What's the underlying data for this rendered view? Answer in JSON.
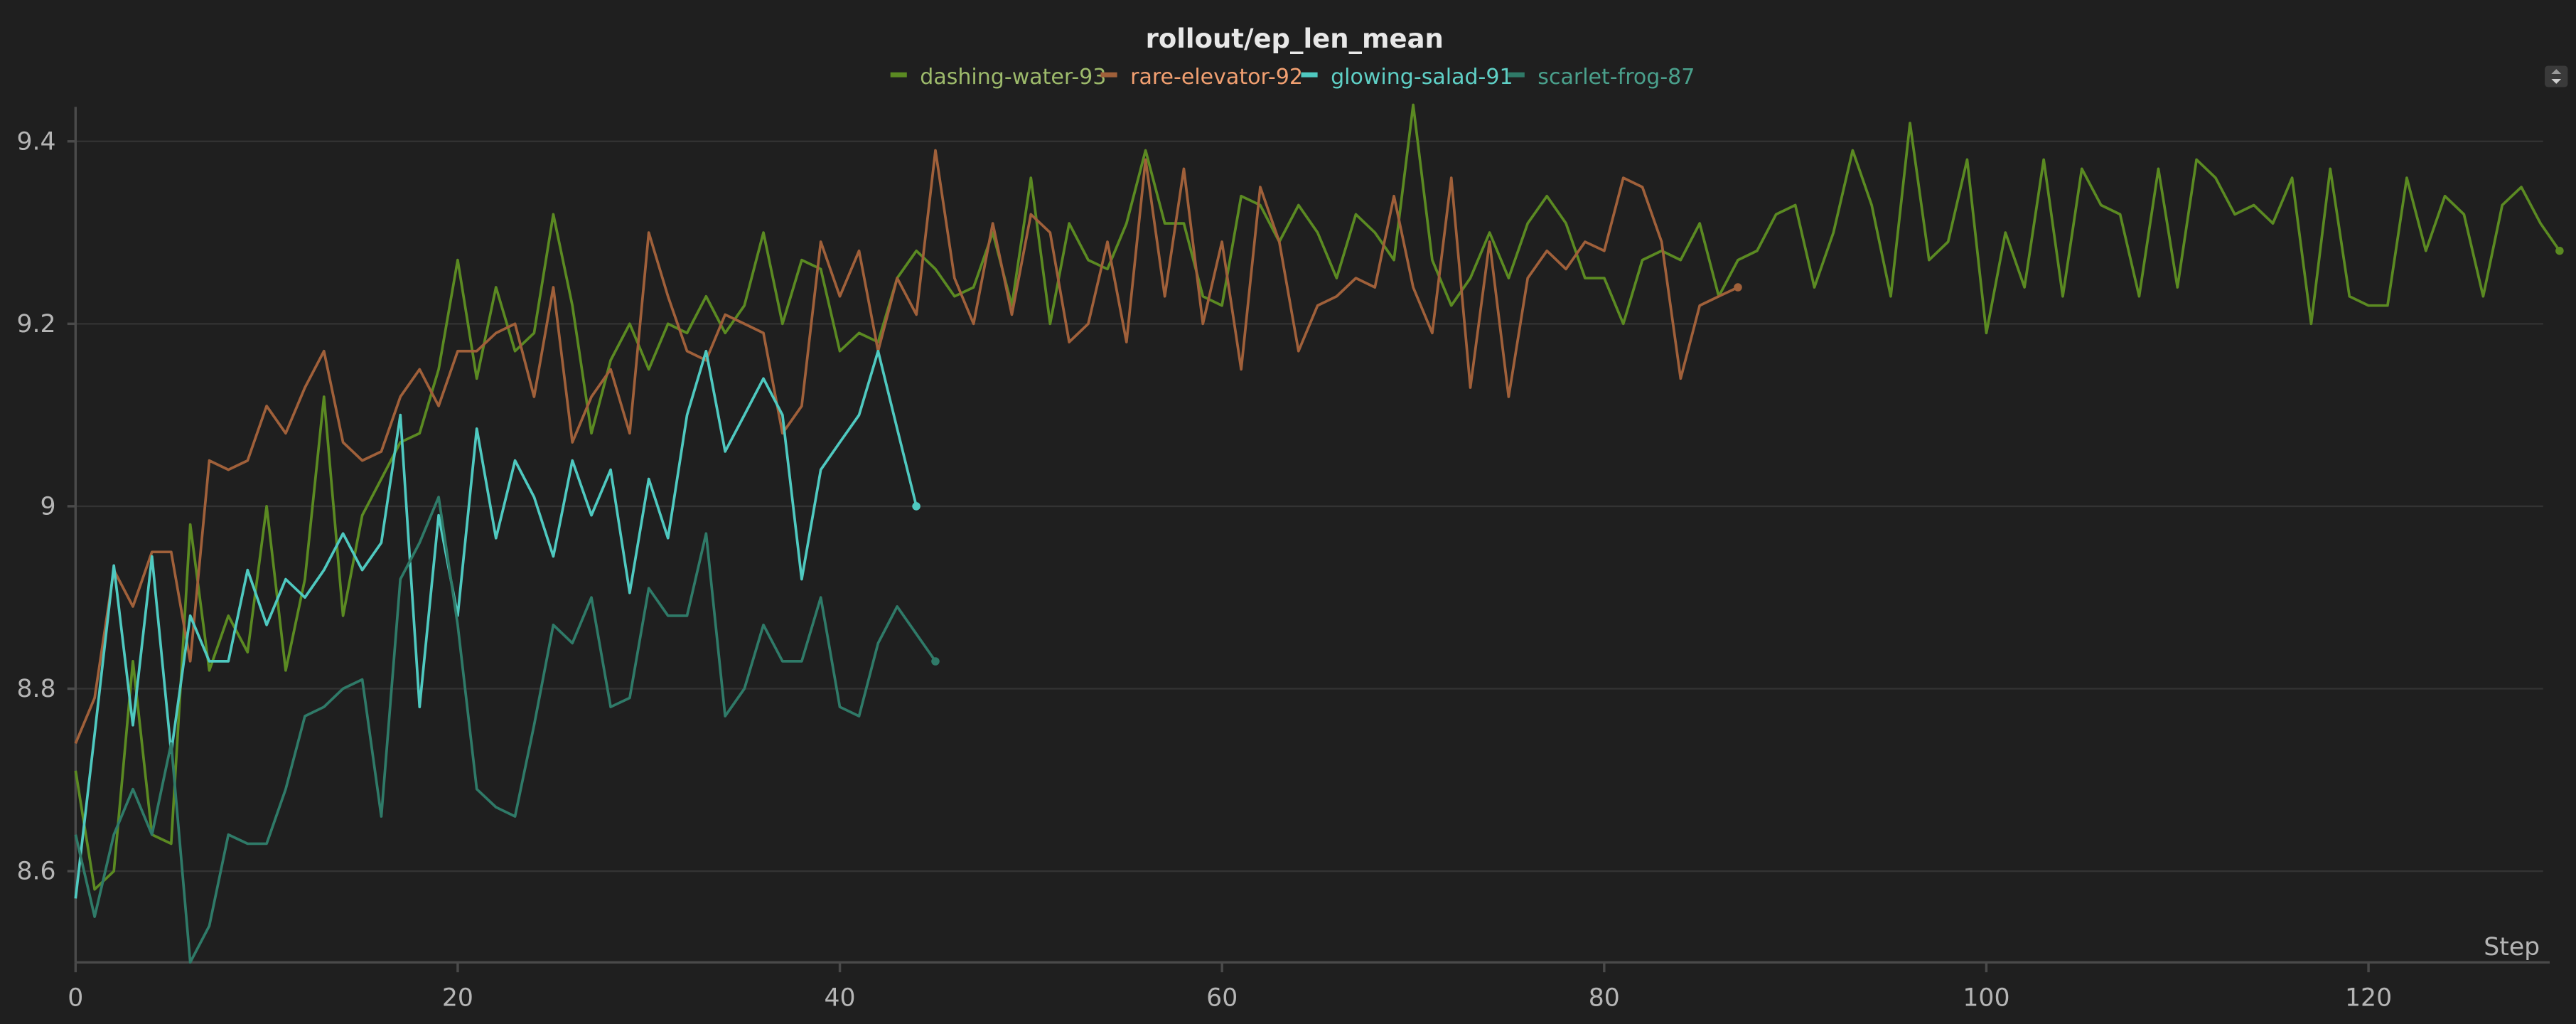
{
  "chart_data": {
    "type": "line",
    "title": "rollout/ep_len_mean",
    "xlabel": "Step",
    "ylabel": "",
    "xlim": [
      0,
      130
    ],
    "ylim": [
      8.5,
      9.45
    ],
    "x_ticks": [
      0,
      20,
      40,
      60,
      80,
      100,
      120
    ],
    "y_ticks": [
      8.6,
      8.8,
      9,
      9.2,
      9.4
    ],
    "y_tick_labels": [
      "8.6",
      "8.8",
      "9",
      "9.2",
      "9.4"
    ],
    "grid": true,
    "legend_position": "top-center",
    "series": [
      {
        "name": "dashing-water-93",
        "color": "#5b8a22",
        "label_color": "#9dba6b",
        "values": [
          8.71,
          8.58,
          8.6,
          8.83,
          8.64,
          8.63,
          8.98,
          8.82,
          8.88,
          8.84,
          9.0,
          8.82,
          8.92,
          9.12,
          8.88,
          8.99,
          9.03,
          9.07,
          9.08,
          9.15,
          9.27,
          9.14,
          9.24,
          9.17,
          9.19,
          9.32,
          9.22,
          9.08,
          9.16,
          9.2,
          9.15,
          9.2,
          9.19,
          9.23,
          9.19,
          9.22,
          9.3,
          9.2,
          9.27,
          9.26,
          9.17,
          9.19,
          9.18,
          9.25,
          9.28,
          9.26,
          9.23,
          9.24,
          9.3,
          9.22,
          9.36,
          9.2,
          9.31,
          9.27,
          9.26,
          9.31,
          9.39,
          9.31,
          9.31,
          9.23,
          9.22,
          9.34,
          9.33,
          9.29,
          9.33,
          9.3,
          9.25,
          9.32,
          9.3,
          9.27,
          9.44,
          9.27,
          9.22,
          9.25,
          9.3,
          9.25,
          9.31,
          9.34,
          9.31,
          9.25,
          9.25,
          9.2,
          9.27,
          9.28,
          9.27,
          9.31,
          9.23,
          9.27,
          9.28,
          9.32,
          9.33,
          9.24,
          9.3,
          9.39,
          9.33,
          9.23,
          9.42,
          9.27,
          9.29,
          9.38,
          9.19,
          9.3,
          9.24,
          9.38,
          9.23,
          9.37,
          9.33,
          9.32,
          9.23,
          9.37,
          9.24,
          9.38,
          9.36,
          9.32,
          9.33,
          9.31,
          9.36,
          9.2,
          9.37,
          9.23,
          9.22,
          9.22,
          9.36,
          9.28,
          9.34,
          9.32,
          9.23,
          9.33,
          9.35,
          9.31,
          9.28
        ]
      },
      {
        "name": "rare-elevator-92",
        "color": "#a0603a",
        "label_color": "#f2a071",
        "values": [
          8.74,
          8.79,
          8.93,
          8.89,
          8.95,
          8.95,
          8.83,
          9.05,
          9.04,
          9.05,
          9.11,
          9.08,
          9.13,
          9.17,
          9.07,
          9.05,
          9.06,
          9.12,
          9.15,
          9.11,
          9.17,
          9.17,
          9.19,
          9.2,
          9.12,
          9.24,
          9.07,
          9.12,
          9.15,
          9.08,
          9.3,
          9.23,
          9.17,
          9.16,
          9.21,
          9.2,
          9.19,
          9.08,
          9.11,
          9.29,
          9.23,
          9.28,
          9.17,
          9.25,
          9.21,
          9.39,
          9.25,
          9.2,
          9.31,
          9.21,
          9.32,
          9.3,
          9.18,
          9.2,
          9.29,
          9.18,
          9.38,
          9.23,
          9.37,
          9.2,
          9.29,
          9.15,
          9.35,
          9.29,
          9.17,
          9.22,
          9.23,
          9.25,
          9.24,
          9.34,
          9.24,
          9.19,
          9.36,
          9.13,
          9.29,
          9.12,
          9.25,
          9.28,
          9.26,
          9.29,
          9.28,
          9.36,
          9.35,
          9.29,
          9.14,
          9.22,
          9.23,
          9.24
        ]
      },
      {
        "name": "glowing-salad-91",
        "color": "#4fc9c0",
        "label_color": "#5fd0c6",
        "values": [
          8.57,
          8.75,
          8.935,
          8.76,
          8.945,
          8.73,
          8.88,
          8.83,
          8.83,
          8.93,
          8.87,
          8.92,
          8.9,
          8.93,
          8.97,
          8.93,
          8.96,
          9.1,
          8.78,
          8.99,
          8.88,
          9.085,
          8.965,
          9.05,
          9.01,
          8.945,
          9.05,
          8.99,
          9.04,
          8.905,
          9.03,
          8.965,
          9.1,
          9.17,
          9.06,
          9.1,
          9.14,
          9.1,
          8.92,
          9.04,
          9.07,
          9.1,
          9.17,
          9.085,
          9.0
        ]
      },
      {
        "name": "scarlet-frog-87",
        "color": "#2f7a68",
        "label_color": "#4aa08c",
        "values": [
          8.64,
          8.55,
          8.64,
          8.69,
          8.64,
          8.74,
          8.5,
          8.54,
          8.64,
          8.63,
          8.63,
          8.69,
          8.77,
          8.78,
          8.8,
          8.81,
          8.66,
          8.92,
          8.96,
          9.01,
          8.87,
          8.69,
          8.67,
          8.66,
          8.76,
          8.87,
          8.85,
          8.9,
          8.78,
          8.79,
          8.91,
          8.88,
          8.88,
          8.97,
          8.77,
          8.8,
          8.87,
          8.83,
          8.83,
          8.9,
          8.78,
          8.77,
          8.85,
          8.89,
          8.86,
          8.83
        ]
      }
    ]
  }
}
